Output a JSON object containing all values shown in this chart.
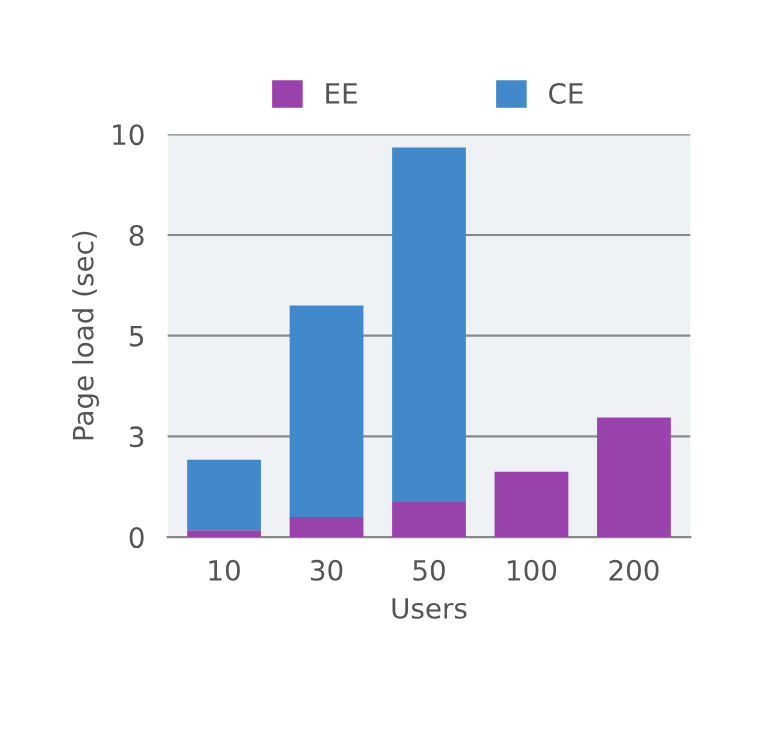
{
  "chart_data": {
    "type": "bar",
    "stacked": true,
    "xlabel": "Users",
    "ylabel": "Page load (sec)",
    "categories": [
      "10",
      "30",
      "50",
      "100",
      "200"
    ],
    "series": [
      {
        "name": "EE",
        "color": "#9a42ab",
        "values": [
          0.17,
          0.5,
          0.87,
          1.62,
          2.97
        ]
      },
      {
        "name": "CE",
        "color": "#4189cb",
        "values": [
          1.75,
          5.25,
          8.8,
          null,
          null
        ]
      }
    ],
    "ylim": [
      0,
      10
    ],
    "yticks": [
      0,
      {
        "value": 2.5,
        "label": "3"
      },
      5,
      {
        "value": 7.5,
        "label": "8"
      },
      10
    ],
    "grid": "y",
    "legend": "top"
  }
}
